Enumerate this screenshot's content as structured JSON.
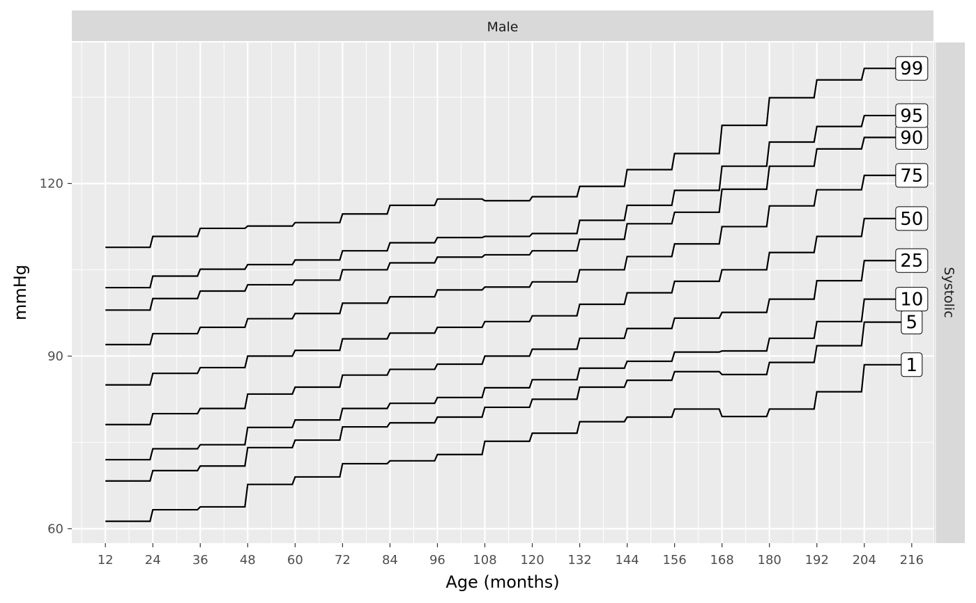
{
  "chart_data": {
    "type": "line",
    "facet_top": "Male",
    "facet_right": "Systolic",
    "xlabel": "Age (months)",
    "ylabel": "mmHg",
    "xlim": [
      3.5,
      221.5
    ],
    "ylim": [
      57.5,
      144.5
    ],
    "x_ticks": [
      12,
      24,
      36,
      48,
      60,
      72,
      84,
      96,
      108,
      120,
      132,
      144,
      156,
      168,
      180,
      192,
      204,
      216
    ],
    "y_ticks": [
      60,
      90,
      120
    ],
    "x_steps": [
      12,
      24,
      36,
      48,
      60,
      72,
      84,
      96,
      108,
      120,
      132,
      144,
      156,
      168,
      180,
      192,
      204,
      216
    ],
    "grid": true,
    "colors": {
      "panel": "#ebebeb",
      "grid": "#ffffff",
      "strip": "#d9d9d9",
      "line": "#000000"
    },
    "series": [
      {
        "name": "1",
        "values": [
          61.3,
          63.3,
          63.8,
          67.7,
          69.0,
          71.3,
          71.8,
          72.9,
          75.2,
          76.6,
          78.6,
          79.4,
          80.8,
          79.5,
          80.8,
          83.8,
          88.5,
          88.5
        ]
      },
      {
        "name": "5",
        "values": [
          68.3,
          70.1,
          70.9,
          74.1,
          75.4,
          77.7,
          78.4,
          79.4,
          81.1,
          82.5,
          84.6,
          85.8,
          87.3,
          86.8,
          88.9,
          91.8,
          95.9,
          95.9
        ]
      },
      {
        "name": "10",
        "values": [
          72.0,
          73.9,
          74.6,
          77.6,
          78.9,
          80.9,
          81.8,
          82.8,
          84.5,
          85.9,
          87.9,
          89.1,
          90.7,
          90.9,
          93.1,
          96.0,
          99.9,
          99.9
        ]
      },
      {
        "name": "25",
        "values": [
          78.1,
          80.0,
          80.9,
          83.4,
          84.6,
          86.7,
          87.7,
          88.6,
          90.0,
          91.2,
          93.1,
          94.8,
          96.6,
          97.6,
          99.9,
          103.1,
          106.6,
          106.6
        ]
      },
      {
        "name": "50",
        "values": [
          85.0,
          87.0,
          88.0,
          90.0,
          91.0,
          93.0,
          94.0,
          95.0,
          96.0,
          97.0,
          99.0,
          101.0,
          103.0,
          105.0,
          108.0,
          110.8,
          113.9,
          113.9
        ]
      },
      {
        "name": "75",
        "values": [
          92.0,
          93.9,
          95.0,
          96.5,
          97.4,
          99.2,
          100.3,
          101.5,
          102.0,
          102.9,
          105.0,
          107.3,
          109.5,
          112.5,
          116.1,
          118.9,
          121.4,
          121.4
        ]
      },
      {
        "name": "90",
        "values": [
          98.0,
          100.0,
          101.3,
          102.4,
          103.2,
          105.0,
          106.2,
          107.2,
          107.6,
          108.3,
          110.3,
          113.0,
          115.0,
          119.0,
          123.0,
          126.0,
          128.0,
          128.0
        ]
      },
      {
        "name": "95",
        "values": [
          101.9,
          103.9,
          105.1,
          105.9,
          106.7,
          108.3,
          109.7,
          110.6,
          110.8,
          111.3,
          113.6,
          116.2,
          118.8,
          123.0,
          127.2,
          129.9,
          131.8,
          131.8
        ]
      },
      {
        "name": "99",
        "values": [
          108.9,
          110.8,
          112.2,
          112.6,
          113.2,
          114.7,
          116.2,
          117.3,
          117.0,
          117.7,
          119.5,
          122.4,
          125.2,
          130.1,
          134.9,
          138.0,
          140.0,
          140.0
        ]
      }
    ]
  }
}
